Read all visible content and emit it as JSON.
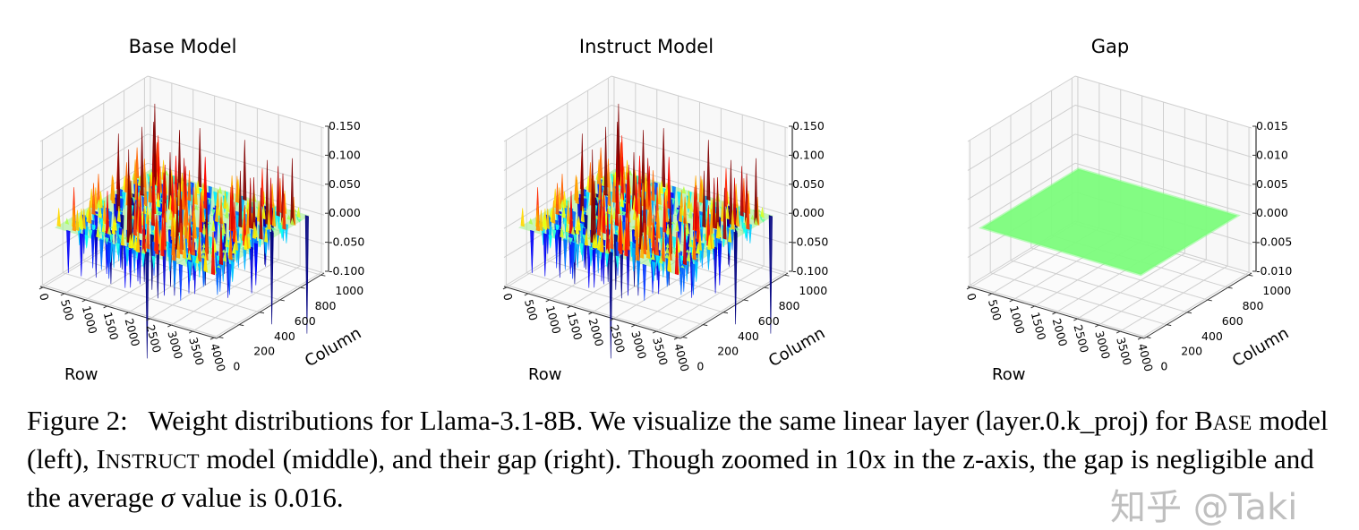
{
  "figure": {
    "panels": [
      {
        "title": "Base Model",
        "z_ticks": [
          "0.150",
          "0.100",
          "0.050",
          "0.000",
          "-0.050",
          "-0.100"
        ],
        "kind": "noise",
        "seed": 7
      },
      {
        "title": "Instruct Model",
        "z_ticks": [
          "0.150",
          "0.100",
          "0.050",
          "0.000",
          "-0.050",
          "-0.100"
        ],
        "kind": "noise",
        "seed": 7
      },
      {
        "title": "Gap",
        "z_ticks": [
          "0.015",
          "0.010",
          "0.005",
          "0.000",
          "-0.005",
          "-0.010"
        ],
        "kind": "flat",
        "seed": 3
      }
    ],
    "row_ticks": [
      "0",
      "500",
      "1000",
      "1500",
      "2000",
      "2500",
      "3000",
      "3500",
      "4000"
    ],
    "column_ticks": [
      "0",
      "200",
      "400",
      "600",
      "800",
      "1000"
    ],
    "row_label": "Row",
    "column_label": "Column",
    "surface_flat_color": "#7cfc7c"
  },
  "caption": {
    "label": "Figure 2:",
    "p1": "Weight distributions for Llama-3.1-8B. We visualize the same linear layer (layer.0.k_proj) for ",
    "base_B": "B",
    "base_rest": "ASE",
    "p2": " model (left), ",
    "inst_I": "I",
    "inst_rest": "NSTRUCT",
    "p3": " model (middle), and their gap (right). Though zoomed in 10x in the z-axis, the gap is negligible and the average ",
    "sigma": "σ",
    "p4": " value is 0.016."
  },
  "watermark": "知乎 @Taki",
  "chart_data": [
    {
      "type": "surface3d",
      "title": "Base Model",
      "xlabel": "Row",
      "ylabel": "Column",
      "xlim": [
        0,
        4096
      ],
      "ylim": [
        0,
        1024
      ],
      "zlim": [
        -0.1,
        0.15
      ]
    },
    {
      "type": "surface3d",
      "title": "Instruct Model",
      "xlabel": "Row",
      "ylabel": "Column",
      "xlim": [
        0,
        4096
      ],
      "ylim": [
        0,
        1024
      ],
      "zlim": [
        -0.1,
        0.15
      ]
    },
    {
      "type": "surface3d",
      "title": "Gap",
      "xlabel": "Row",
      "ylabel": "Column",
      "xlim": [
        0,
        4096
      ],
      "ylim": [
        0,
        1024
      ],
      "zlim": [
        -0.01,
        0.015
      ],
      "value_approx": 0.0
    }
  ]
}
